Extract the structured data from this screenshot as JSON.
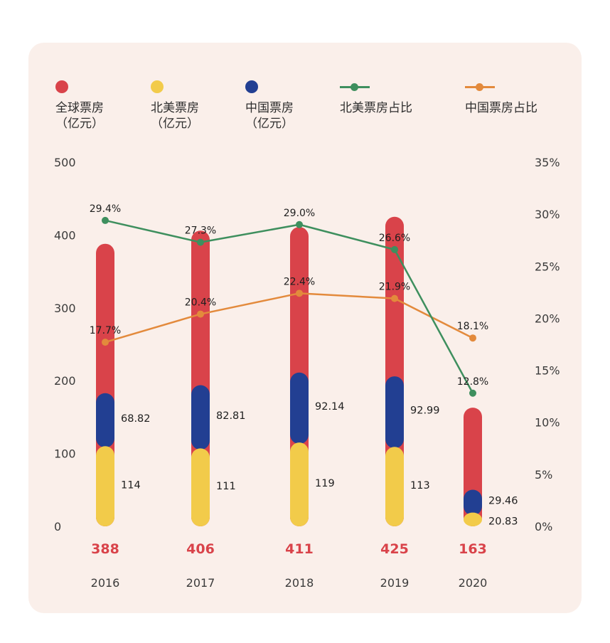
{
  "legend": [
    {
      "type": "dot",
      "color": "#d9434a",
      "line1": "全球票房",
      "line2": "（亿元）"
    },
    {
      "type": "dot",
      "color": "#f2cb4a",
      "line1": "北美票房",
      "line2": "（亿元）"
    },
    {
      "type": "dot",
      "color": "#223f92",
      "line1": "中国票房",
      "line2": "（亿元）"
    },
    {
      "type": "line",
      "color": "#3e8f5e",
      "line1": "北美票房占比",
      "line2": ""
    },
    {
      "type": "line",
      "color": "#e38a3c",
      "line1": "中国票房占比",
      "line2": ""
    }
  ],
  "chart_data": {
    "type": "bar",
    "title": "",
    "categories": [
      "2016",
      "2017",
      "2018",
      "2019",
      "2020"
    ],
    "y_left": {
      "ticks": [
        "500",
        "400",
        "300",
        "200",
        "100",
        "0"
      ],
      "ylim": [
        0,
        500
      ]
    },
    "y_right": {
      "ticks": [
        "35%",
        "30%",
        "25%",
        "20%",
        "15%",
        "10%",
        "5%",
        "0%"
      ],
      "ylim": [
        0,
        35
      ]
    },
    "series": [
      {
        "name": "全球票房（亿元）",
        "color": "#d9434a",
        "values": [
          388,
          406,
          411,
          425,
          163
        ],
        "labels": [
          "388",
          "406",
          "411",
          "425",
          "163"
        ]
      },
      {
        "name": "北美票房（亿元）",
        "color": "#f2cb4a",
        "values": [
          114,
          111,
          119,
          113,
          20.83
        ],
        "labels": [
          "114",
          "111",
          "119",
          "113",
          "20.83"
        ]
      },
      {
        "name": "中国票房（亿元）",
        "color": "#223f92",
        "values": [
          68.82,
          82.81,
          92.14,
          92.99,
          29.46
        ],
        "labels": [
          "68.82",
          "82.81",
          "92.14",
          "92.99",
          "29.46"
        ]
      },
      {
        "name": "北美票房占比",
        "type": "line",
        "axis": "right",
        "color": "#3e8f5e",
        "values": [
          29.4,
          27.3,
          29.0,
          26.6,
          12.8
        ],
        "labels": [
          "29.4%",
          "27.3%",
          "29.0%",
          "26.6%",
          "12.8%"
        ]
      },
      {
        "name": "中国票房占比",
        "type": "line",
        "axis": "right",
        "color": "#e38a3c",
        "values": [
          17.7,
          20.4,
          22.4,
          21.9,
          18.1
        ],
        "labels": [
          "17.7%",
          "20.4%",
          "22.4%",
          "21.9%",
          "18.1%"
        ]
      }
    ]
  }
}
